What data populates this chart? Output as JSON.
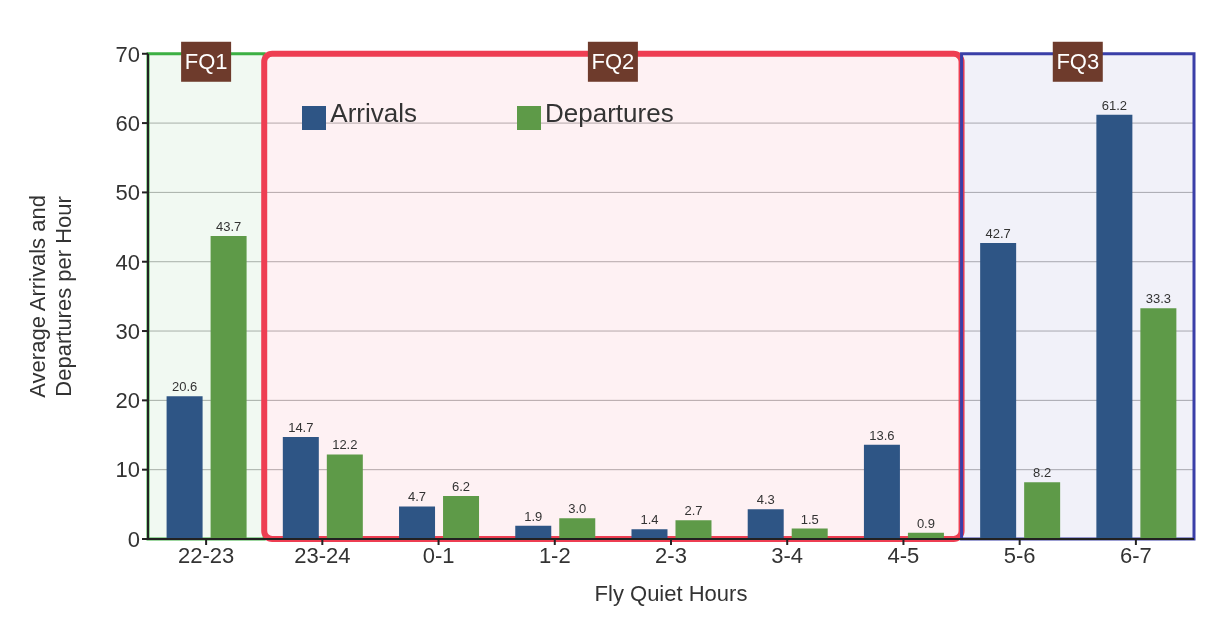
{
  "chart_data": {
    "type": "bar",
    "xlabel": "Fly Quiet Hours",
    "ylabel": "Average Arrivals and Departures per Hour",
    "categories": [
      "22-23",
      "23-24",
      "0-1",
      "1-2",
      "2-3",
      "3-4",
      "4-5",
      "5-6",
      "6-7"
    ],
    "series": [
      {
        "name": "Arrivals",
        "color": "#2e5585",
        "values": [
          20.6,
          14.7,
          4.7,
          1.9,
          1.4,
          4.3,
          13.6,
          42.7,
          61.2
        ],
        "value_labels": [
          "20.6",
          "14.7",
          "4.7",
          "1.9",
          "1.4",
          "4.3",
          "13.6",
          "42.7",
          "61.2"
        ]
      },
      {
        "name": "Departures",
        "color": "#5e9a48",
        "values": [
          43.7,
          12.2,
          6.2,
          3.0,
          2.7,
          1.5,
          0.9,
          8.2,
          33.3
        ],
        "value_labels": [
          "43.7",
          "12.2",
          "6.2",
          "3.0",
          "2.7",
          "1.5",
          "0.9",
          "8.2",
          "33.3"
        ]
      }
    ],
    "ylim": [
      0,
      70
    ],
    "yticks": [
      0,
      10,
      20,
      30,
      40,
      50,
      60,
      70
    ],
    "grid": "y",
    "legend": "top",
    "bands": [
      {
        "axis": "x",
        "from": "22-23",
        "to": "22-23",
        "label": "FQ1",
        "color": "#3cb043"
      },
      {
        "axis": "x",
        "from": "23-24",
        "to": "4-5",
        "label": "FQ2",
        "color": "#ee3e52"
      },
      {
        "axis": "x",
        "from": "5-6",
        "to": "6-7",
        "label": "FQ3",
        "color": "#3a3fa8"
      }
    ]
  }
}
